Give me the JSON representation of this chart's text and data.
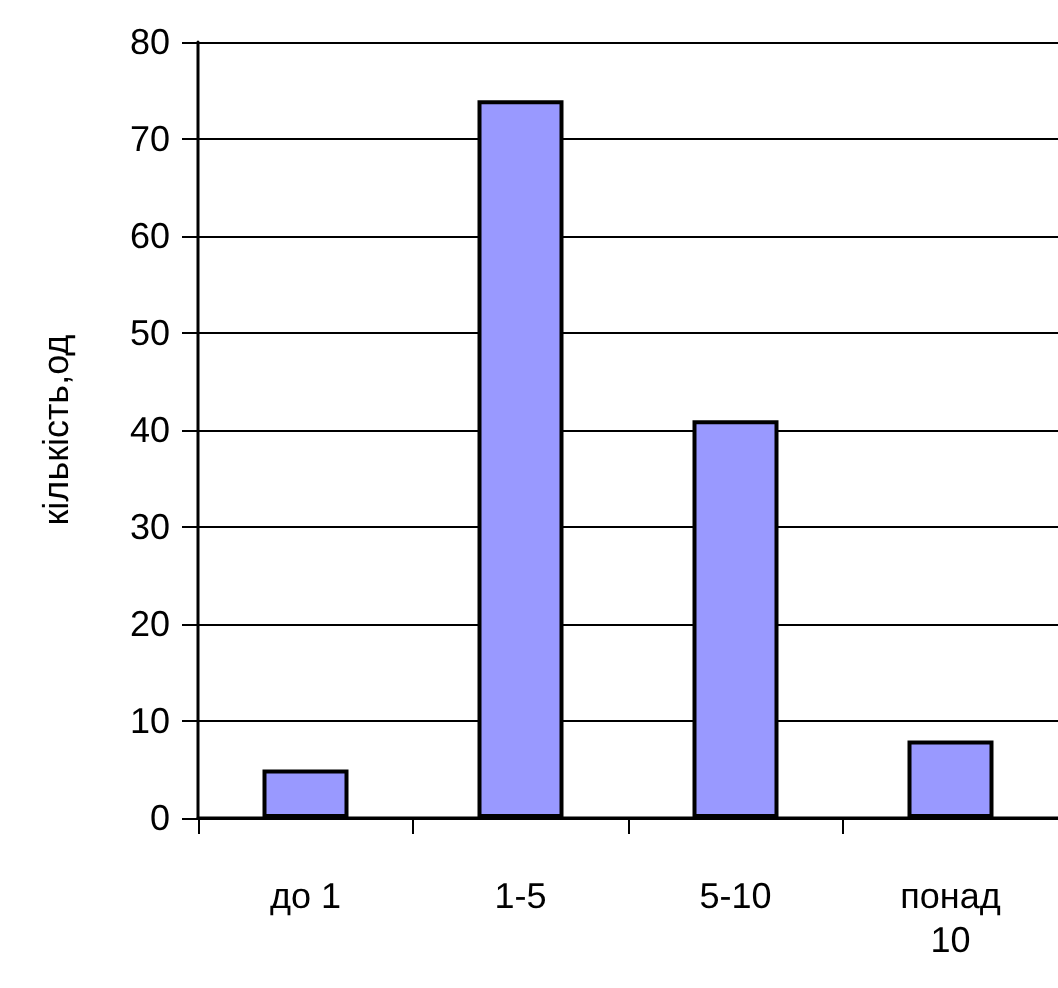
{
  "chart_data": {
    "type": "bar",
    "ylabel": "кількість,од",
    "categories": [
      "до 1",
      "1-5",
      "5-10",
      "понад 10"
    ],
    "values": [
      5,
      74,
      41,
      8
    ],
    "color": "#9999ff",
    "ylim": [
      0,
      80
    ],
    "yticks": [
      0,
      10,
      20,
      30,
      40,
      50,
      60,
      70,
      80
    ],
    "grid": "y"
  }
}
